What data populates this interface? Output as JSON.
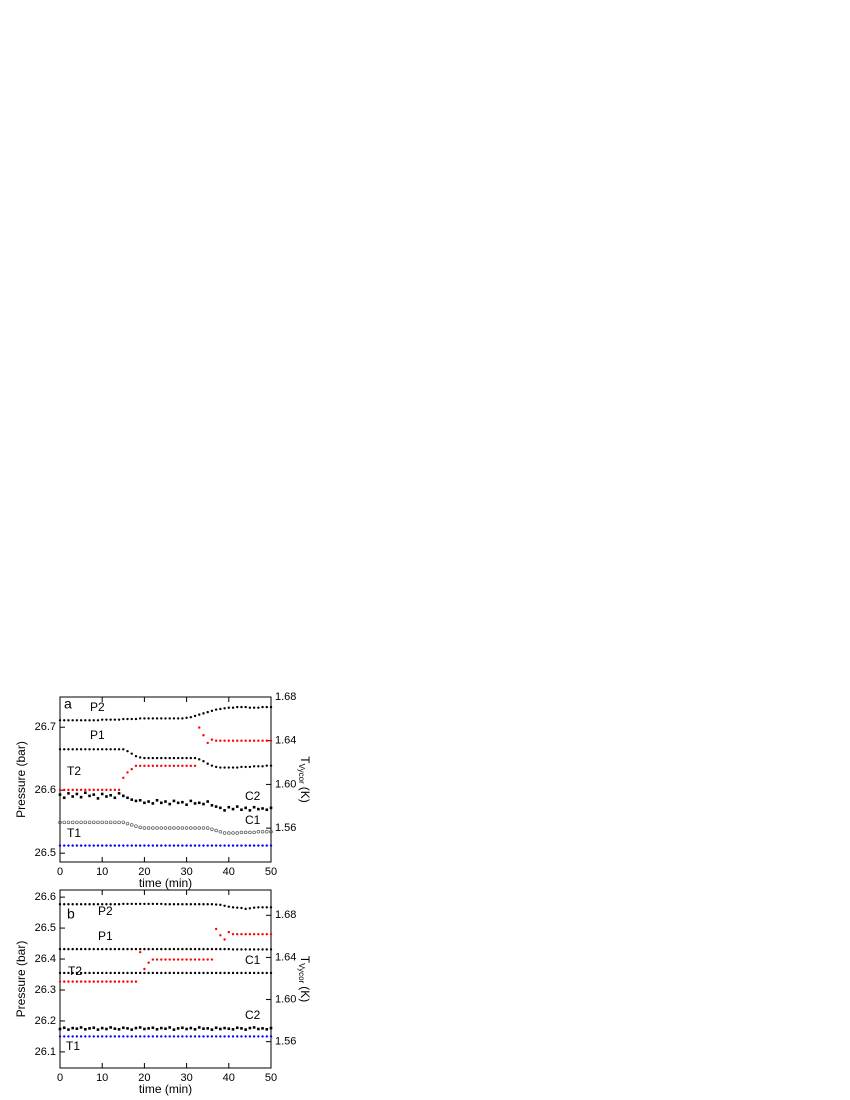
{
  "chart_data": [
    {
      "type": "scatter",
      "label": "a",
      "xlabel": "time (min)",
      "ylabel": "Pressure (bar)",
      "y2label": [
        "T",
        "Vycor",
        "(K)"
      ],
      "x": [
        0,
        1,
        2,
        3,
        4,
        5,
        6,
        7,
        8,
        9,
        10,
        11,
        12,
        13,
        14,
        15,
        16,
        17,
        18,
        19,
        20,
        21,
        22,
        23,
        24,
        25,
        26,
        27,
        28,
        29,
        30,
        31,
        32,
        33,
        34,
        35,
        36,
        37,
        38,
        39,
        40,
        41,
        42,
        43,
        44,
        45,
        46,
        47,
        48,
        49,
        50
      ],
      "xlim": [
        0,
        50
      ],
      "ylim": [
        26.486,
        26.748
      ],
      "y2lim": [
        1.529,
        1.68
      ],
      "xticks": [
        0,
        10,
        20,
        30,
        40,
        50
      ],
      "yticks": [
        26.5,
        26.6,
        26.7
      ],
      "y2ticks": [
        1.56,
        {
          "value": 1.6,
          "label": "1.60"
        },
        1.64,
        1.68
      ],
      "series": [
        {
          "name": "P2",
          "color": "#000000",
          "marker": "dot",
          "values": [
            26.711,
            26.711,
            26.711,
            26.711,
            26.711,
            26.711,
            26.711,
            26.711,
            26.711,
            26.711,
            26.712,
            26.712,
            26.712,
            26.712,
            26.712,
            26.713,
            26.713,
            26.713,
            26.713,
            26.714,
            26.714,
            26.714,
            26.714,
            26.714,
            26.714,
            26.714,
            26.714,
            26.714,
            26.714,
            26.714,
            26.715,
            26.716,
            26.718,
            26.72,
            26.722,
            26.724,
            26.726,
            26.728,
            26.729,
            26.73,
            26.731,
            26.731,
            26.732,
            26.732,
            26.732,
            26.731,
            26.731,
            26.731,
            26.732,
            26.732,
            26.732
          ]
        },
        {
          "name": "P1",
          "color": "#000000",
          "marker": "dot",
          "values": [
            26.665,
            26.665,
            26.665,
            26.665,
            26.665,
            26.665,
            26.665,
            26.665,
            26.665,
            26.665,
            26.665,
            26.665,
            26.665,
            26.665,
            26.665,
            26.665,
            26.662,
            26.658,
            26.654,
            26.652,
            26.651,
            26.651,
            26.651,
            26.651,
            26.651,
            26.651,
            26.651,
            26.651,
            26.651,
            26.651,
            26.651,
            26.651,
            26.651,
            26.649,
            26.646,
            26.642,
            26.639,
            26.637,
            26.636,
            26.636,
            26.636,
            26.636,
            26.636,
            26.637,
            26.637,
            26.637,
            26.638,
            26.638,
            26.638,
            26.639,
            26.639
          ]
        },
        {
          "name": "T2",
          "color": "#ff0000",
          "marker": "dot",
          "axis": "y2",
          "values": [
            1.595,
            1.595,
            1.595,
            1.595,
            1.595,
            1.595,
            1.595,
            1.595,
            1.595,
            1.595,
            1.595,
            1.595,
            1.595,
            1.595,
            1.595,
            1.606,
            1.611,
            1.614,
            1.617,
            1.617,
            1.617,
            1.617,
            1.617,
            1.617,
            1.617,
            1.617,
            1.617,
            1.617,
            1.617,
            1.617,
            1.617,
            1.617,
            1.617,
            1.652,
            1.645,
            1.638,
            1.641,
            1.64,
            1.64,
            1.64,
            1.64,
            1.64,
            1.64,
            1.64,
            1.64,
            1.64,
            1.64,
            1.64,
            1.64,
            1.64,
            1.64
          ]
        },
        {
          "name": "C2",
          "color": "#000000",
          "marker": "square",
          "values": [
            26.593,
            26.588,
            26.595,
            26.59,
            26.594,
            26.589,
            26.596,
            26.591,
            26.593,
            26.587,
            26.594,
            26.59,
            26.592,
            26.588,
            26.595,
            26.591,
            26.588,
            26.585,
            26.583,
            26.584,
            26.58,
            26.582,
            26.579,
            26.584,
            26.58,
            26.582,
            26.578,
            26.583,
            26.58,
            26.581,
            26.577,
            26.583,
            26.579,
            26.58,
            26.578,
            26.582,
            26.576,
            26.574,
            26.572,
            26.568,
            26.573,
            26.57,
            26.574,
            26.569,
            26.572,
            26.568,
            26.573,
            26.57,
            26.571,
            26.569,
            26.572
          ]
        },
        {
          "name": "C1",
          "color": "#555555",
          "marker": "open",
          "values": [
            26.549,
            26.549,
            26.549,
            26.549,
            26.549,
            26.549,
            26.549,
            26.549,
            26.549,
            26.549,
            26.549,
            26.549,
            26.549,
            26.549,
            26.549,
            26.549,
            26.547,
            26.545,
            26.543,
            26.541,
            26.54,
            26.54,
            26.54,
            26.54,
            26.54,
            26.54,
            26.54,
            26.54,
            26.54,
            26.54,
            26.54,
            26.54,
            26.54,
            26.54,
            26.54,
            26.54,
            26.538,
            26.536,
            26.534,
            26.532,
            26.532,
            26.532,
            26.532,
            26.533,
            26.533,
            26.533,
            26.533,
            26.534,
            26.534,
            26.534,
            26.534
          ]
        },
        {
          "name": "T1",
          "color": "#0000ff",
          "marker": "dot",
          "axis": "y2",
          "values": [
            1.544,
            1.544,
            1.544,
            1.544,
            1.544,
            1.544,
            1.544,
            1.544,
            1.544,
            1.544,
            1.544,
            1.544,
            1.544,
            1.544,
            1.544,
            1.544,
            1.544,
            1.544,
            1.544,
            1.544,
            1.544,
            1.544,
            1.544,
            1.544,
            1.544,
            1.544,
            1.544,
            1.544,
            1.544,
            1.544,
            1.544,
            1.544,
            1.544,
            1.544,
            1.544,
            1.544,
            1.544,
            1.544,
            1.544,
            1.544,
            1.544,
            1.544,
            1.544,
            1.544,
            1.544,
            1.544,
            1.544,
            1.544,
            1.544,
            1.544,
            1.544
          ]
        }
      ]
    },
    {
      "type": "scatter",
      "label": "b",
      "xlabel": "time (min)",
      "ylabel": "Pressure (bar)",
      "y2label": [
        "T",
        "Vycor",
        "(K)"
      ],
      "x": [
        0,
        1,
        2,
        3,
        4,
        5,
        6,
        7,
        8,
        9,
        10,
        11,
        12,
        13,
        14,
        15,
        16,
        17,
        18,
        19,
        20,
        21,
        22,
        23,
        24,
        25,
        26,
        27,
        28,
        29,
        30,
        31,
        32,
        33,
        34,
        35,
        36,
        37,
        38,
        39,
        40,
        41,
        42,
        43,
        44,
        45,
        46,
        47,
        48,
        49,
        50
      ],
      "xlim": [
        0,
        50
      ],
      "ylim": [
        26.048,
        26.623
      ],
      "y2lim": [
        1.535,
        1.704
      ],
      "xticks": [
        0,
        10,
        20,
        30,
        40,
        50
      ],
      "yticks": [
        26.1,
        26.2,
        26.3,
        26.4,
        26.5,
        26.6
      ],
      "y2ticks": [
        1.56,
        {
          "value": 1.6,
          "label": "1.60"
        },
        1.64,
        1.68
      ],
      "series": [
        {
          "name": "P2",
          "color": "#000000",
          "marker": "dot",
          "values": [
            26.577,
            26.577,
            26.577,
            26.577,
            26.577,
            26.577,
            26.577,
            26.577,
            26.577,
            26.577,
            26.577,
            26.577,
            26.577,
            26.577,
            26.577,
            26.578,
            26.578,
            26.578,
            26.578,
            26.578,
            26.578,
            26.578,
            26.578,
            26.578,
            26.578,
            26.577,
            26.577,
            26.577,
            26.577,
            26.577,
            26.577,
            26.577,
            26.577,
            26.577,
            26.577,
            26.577,
            26.577,
            26.576,
            26.575,
            26.572,
            26.569,
            26.567,
            26.566,
            26.565,
            26.562,
            26.564,
            26.566,
            26.567,
            26.567,
            26.567,
            26.567
          ]
        },
        {
          "name": "P1",
          "color": "#000000",
          "marker": "dot",
          "values": [
            26.432,
            26.432,
            26.432,
            26.432,
            26.432,
            26.432,
            26.432,
            26.432,
            26.432,
            26.432,
            26.432,
            26.432,
            26.432,
            26.432,
            26.432,
            26.432,
            26.432,
            26.432,
            26.432,
            26.432,
            26.432,
            26.432,
            26.432,
            26.432,
            26.432,
            26.432,
            26.432,
            26.432,
            26.432,
            26.432,
            26.432,
            26.432,
            26.432,
            26.432,
            26.432,
            26.432,
            26.432,
            26.432,
            26.432,
            26.432,
            26.432,
            26.431,
            26.431,
            26.431,
            26.431,
            26.431,
            26.431,
            26.431,
            26.431,
            26.431,
            26.431
          ]
        },
        {
          "name": "T2",
          "color": "#ff0000",
          "marker": "dot",
          "axis": "y2",
          "values": [
            1.617,
            1.617,
            1.617,
            1.617,
            1.617,
            1.617,
            1.617,
            1.617,
            1.617,
            1.617,
            1.617,
            1.617,
            1.617,
            1.617,
            1.617,
            1.617,
            1.617,
            1.617,
            1.617,
            1.645,
            1.629,
            1.635,
            1.638,
            1.638,
            1.638,
            1.638,
            1.638,
            1.638,
            1.638,
            1.638,
            1.638,
            1.638,
            1.638,
            1.638,
            1.638,
            1.638,
            1.638,
            1.667,
            1.661,
            1.657,
            1.664,
            1.662,
            1.662,
            1.662,
            1.662,
            1.662,
            1.662,
            1.662,
            1.662,
            1.662,
            1.662
          ]
        },
        {
          "name": "C1",
          "color": "#000000",
          "marker": "dot",
          "values": [
            26.355,
            26.355,
            26.355,
            26.355,
            26.355,
            26.355,
            26.355,
            26.355,
            26.355,
            26.355,
            26.355,
            26.355,
            26.355,
            26.355,
            26.355,
            26.355,
            26.355,
            26.355,
            26.355,
            26.355,
            26.355,
            26.355,
            26.355,
            26.355,
            26.355,
            26.355,
            26.355,
            26.355,
            26.355,
            26.355,
            26.355,
            26.355,
            26.355,
            26.355,
            26.355,
            26.355,
            26.355,
            26.355,
            26.355,
            26.355,
            26.355,
            26.355,
            26.355,
            26.355,
            26.355,
            26.355,
            26.355,
            26.355,
            26.355,
            26.355,
            26.355
          ]
        },
        {
          "name": "C2",
          "color": "#000000",
          "marker": "square",
          "values": [
            26.174,
            26.178,
            26.172,
            26.177,
            26.175,
            26.179,
            26.173,
            26.176,
            26.178,
            26.172,
            26.177,
            26.174,
            26.179,
            26.175,
            26.173,
            26.178,
            26.176,
            26.172,
            26.177,
            26.179,
            26.174,
            26.176,
            26.178,
            26.173,
            26.177,
            26.175,
            26.179,
            26.172,
            26.176,
            26.178,
            26.174,
            26.177,
            26.173,
            26.179,
            26.175,
            26.176,
            26.172,
            26.178,
            26.174,
            26.177,
            26.175,
            26.173,
            26.178,
            26.176,
            26.172,
            26.177,
            26.179,
            26.174,
            26.176,
            26.173,
            26.177
          ]
        },
        {
          "name": "T1",
          "color": "#0000ff",
          "marker": "dot",
          "axis": "y2",
          "values": [
            1.565,
            1.565,
            1.565,
            1.565,
            1.565,
            1.565,
            1.565,
            1.565,
            1.565,
            1.565,
            1.565,
            1.565,
            1.565,
            1.565,
            1.565,
            1.565,
            1.565,
            1.565,
            1.565,
            1.565,
            1.565,
            1.565,
            1.565,
            1.565,
            1.565,
            1.565,
            1.565,
            1.565,
            1.565,
            1.565,
            1.565,
            1.565,
            1.565,
            1.565,
            1.565,
            1.565,
            1.565,
            1.565,
            1.565,
            1.565,
            1.565,
            1.565,
            1.565,
            1.565,
            1.565,
            1.565,
            1.565,
            1.565,
            1.565,
            1.565,
            1.565
          ]
        }
      ]
    }
  ]
}
